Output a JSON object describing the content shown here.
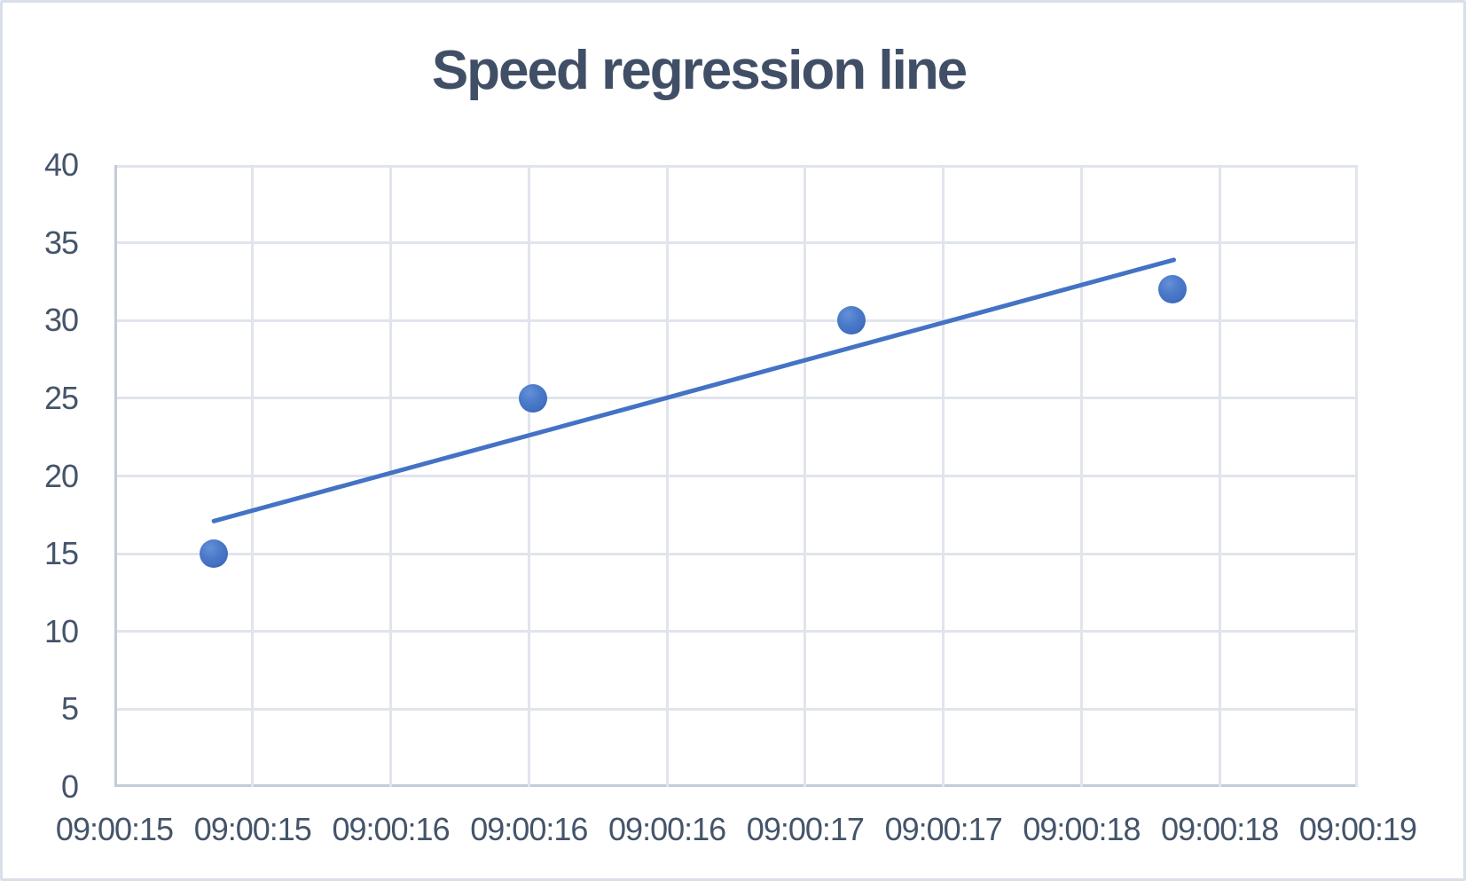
{
  "chart_data": {
    "type": "scatter",
    "title": "Speed regression line",
    "xlabel": "",
    "ylabel": "",
    "ylim": [
      0,
      40
    ],
    "y_ticks": [
      0,
      5,
      10,
      15,
      20,
      25,
      30,
      35,
      40
    ],
    "x_tick_labels": [
      "09:00:15",
      "09:00:15",
      "09:00:16",
      "09:00:16",
      "09:00:16",
      "09:00:17",
      "09:00:17",
      "09:00:18",
      "09:00:18",
      "09:00:19"
    ],
    "grid": true,
    "legend": "none",
    "series": [
      {
        "name": "Speed",
        "type": "scatter",
        "points": [
          {
            "time": "09:00:15",
            "speed": 15,
            "x_fraction": 0.08
          },
          {
            "time": "09:00:16",
            "speed": 25,
            "x_fraction": 0.337
          },
          {
            "time": "09:00:17",
            "speed": 30,
            "x_fraction": 0.593
          },
          {
            "time": "09:00:18",
            "speed": 32,
            "x_fraction": 0.851
          }
        ]
      },
      {
        "name": "Linear regression trendline",
        "type": "line",
        "points": [
          {
            "speed": 17.1,
            "x_fraction": 0.08
          },
          {
            "speed": 33.9,
            "x_fraction": 0.852
          }
        ]
      }
    ],
    "colors": {
      "accent": "#4472c4",
      "marker": "#4472c4",
      "trendline": "#4472c4",
      "text": "#44546a",
      "title_text": "#404f66",
      "gridline": "#e0e4ec",
      "axis_line": "#c3ccd9",
      "frame_border": "#d9dfe8",
      "background": "#ffffff"
    }
  }
}
